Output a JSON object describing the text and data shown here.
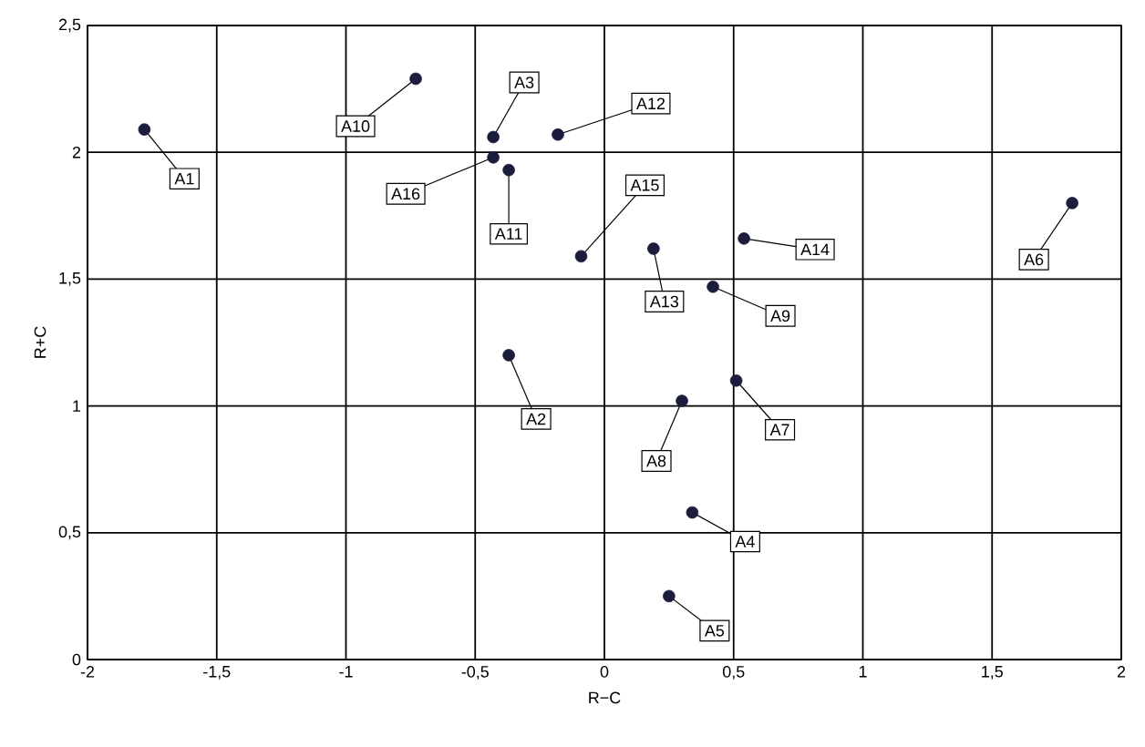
{
  "chart_data": {
    "type": "scatter",
    "xlabel": "R−C",
    "ylabel": "R+C",
    "x": [
      -1.78,
      -0.73,
      -0.43,
      -0.18,
      -0.43,
      -0.37,
      -0.09,
      0.19,
      0.54,
      0.42,
      1.81,
      -0.37,
      0.51,
      0.3,
      0.34,
      0.25
    ],
    "values": [
      2.09,
      2.29,
      2.06,
      2.07,
      1.98,
      1.93,
      1.59,
      1.62,
      1.66,
      1.47,
      1.8,
      1.2,
      1.1,
      1.02,
      0.58,
      0.25
    ],
    "color": "#1c1c3c",
    "marker": "circle",
    "grid": true,
    "xlim": [
      -2,
      2
    ],
    "ylim": [
      0,
      2.5
    ],
    "xticks": [
      {
        "value": -2,
        "label": "-2"
      },
      {
        "value": -1.5,
        "label": "-1,5"
      },
      {
        "value": -1,
        "label": "-1"
      },
      {
        "value": -0.5,
        "label": "-0,5"
      },
      0,
      {
        "value": 0.5,
        "label": "0,5"
      },
      1,
      {
        "value": 1.5,
        "label": "1,5"
      },
      2
    ],
    "yticks": [
      0,
      {
        "value": 0.5,
        "label": "0,5"
      },
      1,
      {
        "value": 1.5,
        "label": "1,5"
      },
      2,
      {
        "value": 2.5,
        "label": "2,5"
      }
    ],
    "annotations": [
      {
        "text": "A1",
        "x": -1.78,
        "y": 2.09
      },
      {
        "text": "A10",
        "x": -0.73,
        "y": 2.29
      },
      {
        "text": "A3",
        "x": -0.43,
        "y": 2.06
      },
      {
        "text": "A12",
        "x": -0.18,
        "y": 2.07
      },
      {
        "text": "A16",
        "x": -0.43,
        "y": 1.98
      },
      {
        "text": "A11",
        "x": -0.37,
        "y": 1.93
      },
      {
        "text": "A15",
        "x": -0.09,
        "y": 1.59
      },
      {
        "text": "A13",
        "x": 0.19,
        "y": 1.62
      },
      {
        "text": "A14",
        "x": 0.54,
        "y": 1.66
      },
      {
        "text": "A9",
        "x": 0.42,
        "y": 1.47
      },
      {
        "text": "A6",
        "x": 1.81,
        "y": 1.8
      },
      {
        "text": "A2",
        "x": -0.37,
        "y": 1.2
      },
      {
        "text": "A7",
        "x": 0.51,
        "y": 1.1
      },
      {
        "text": "A8",
        "x": 0.3,
        "y": 1.02
      },
      {
        "text": "A4",
        "x": 0.34,
        "y": 0.58
      },
      {
        "text": "A5",
        "x": 0.25,
        "y": 0.25
      }
    ]
  }
}
